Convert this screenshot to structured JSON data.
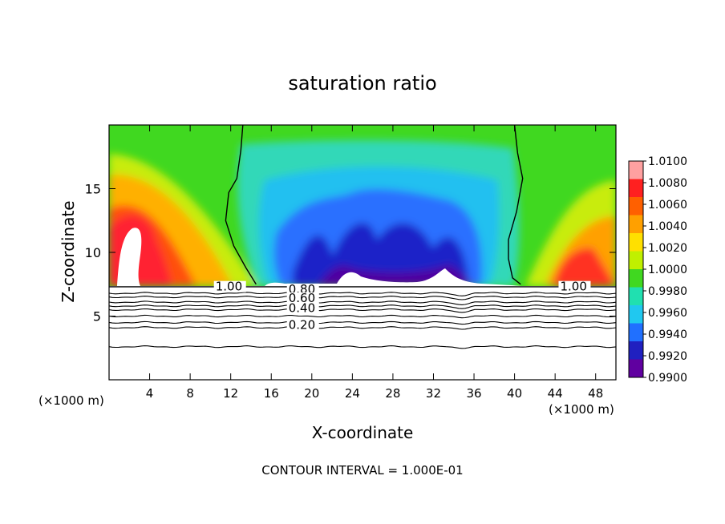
{
  "chart_data": {
    "type": "heatmap",
    "title": "saturation ratio",
    "xlabel": "X-coordinate",
    "ylabel": "Z-coordinate",
    "x_unit_left": "(×1000 m)",
    "x_unit_right": "(×1000 m)",
    "xlim": [
      0,
      50
    ],
    "ylim": [
      0,
      20
    ],
    "x_ticks": [
      {
        "value": 4,
        "label": "4"
      },
      {
        "value": 8,
        "label": "8"
      },
      {
        "value": 12,
        "label": "12"
      },
      {
        "value": 16,
        "label": "16"
      },
      {
        "value": 20,
        "label": "20"
      },
      {
        "value": 24,
        "label": "24"
      },
      {
        "value": 28,
        "label": "28"
      },
      {
        "value": 32,
        "label": "32"
      },
      {
        "value": 36,
        "label": "36"
      },
      {
        "value": 40,
        "label": "40"
      },
      {
        "value": 44,
        "label": "44"
      },
      {
        "value": 48,
        "label": "48"
      }
    ],
    "y_ticks": [
      {
        "value": 5,
        "label": "5"
      },
      {
        "value": 10,
        "label": "10"
      },
      {
        "value": 15,
        "label": "15"
      }
    ],
    "colorbar": {
      "min": 0.99,
      "max": 1.01,
      "labels": [
        "1.0100",
        "1.0080",
        "1.0060",
        "1.0040",
        "1.0020",
        "1.0000",
        "0.9980",
        "0.9960",
        "0.9940",
        "0.9920",
        "0.9900"
      ],
      "colors": [
        "#ffa0a0",
        "#ff2020",
        "#ff6000",
        "#ffa000",
        "#ffe000",
        "#c0f000",
        "#40d820",
        "#20e0b0",
        "#20c8f0",
        "#2070ff",
        "#2020c0",
        "#6000a0"
      ]
    },
    "contour_labels": [
      {
        "text": "1.00",
        "x": 10.5,
        "y": 7.0
      },
      {
        "text": "1.00",
        "x": 44.5,
        "y": 7.0
      },
      {
        "text": "0.80",
        "x": 17.7,
        "y": 6.8
      },
      {
        "text": "0.60",
        "x": 17.7,
        "y": 6.1
      },
      {
        "text": "0.40",
        "x": 17.7,
        "y": 5.3
      },
      {
        "text": "0.20",
        "x": 17.7,
        "y": 4.0
      }
    ],
    "contour_lines": [
      {
        "level": 0.9,
        "y": 6.8
      },
      {
        "level": 0.8,
        "y": 6.5
      },
      {
        "level": 0.7,
        "y": 6.1
      },
      {
        "level": 0.6,
        "y": 5.8
      },
      {
        "level": 0.5,
        "y": 5.5
      },
      {
        "level": 0.4,
        "y": 5.0
      },
      {
        "level": 0.3,
        "y": 4.5
      },
      {
        "level": 0.2,
        "y": 4.1
      },
      {
        "level": 0.1,
        "y": 2.6
      }
    ],
    "unit_contours": [
      {
        "points": [
          [
            13.2,
            20
          ],
          [
            13.0,
            18
          ],
          [
            12.6,
            15.8
          ],
          [
            11.8,
            14.7
          ],
          [
            11.5,
            12.5
          ],
          [
            12.3,
            10.5
          ],
          [
            13.5,
            8.8
          ],
          [
            14.5,
            7.5
          ]
        ]
      },
      {
        "points": [
          [
            40.0,
            20
          ],
          [
            40.3,
            17.8
          ],
          [
            40.8,
            15.8
          ],
          [
            40.2,
            13.2
          ],
          [
            39.4,
            11.0
          ],
          [
            39.4,
            9.5
          ],
          [
            39.8,
            8.0
          ],
          [
            40.6,
            7.5
          ]
        ]
      }
    ],
    "cloud_base_z": 7.3,
    "footer_text": "CONTOUR INTERVAL = 1.000E-01"
  }
}
